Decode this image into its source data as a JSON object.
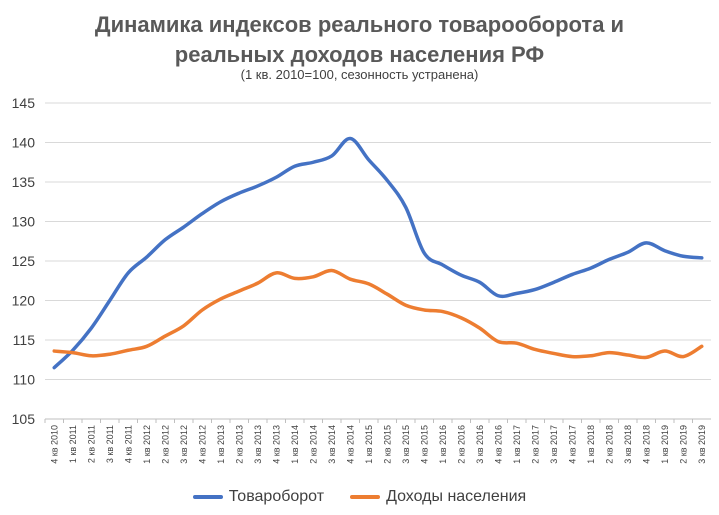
{
  "chart_data": {
    "type": "line",
    "title_line1": "Динамика индексов реального товарооборота и",
    "title_line2": "реальных доходов населения РФ",
    "subtitle": "(1 кв. 2010=100, сезонность устранена)",
    "ylim": [
      105,
      145
    ],
    "yticks": [
      105,
      110,
      115,
      120,
      125,
      130,
      135,
      140,
      145
    ],
    "grid": "horizontal",
    "legend_position": "bottom",
    "categories": [
      "4 кв 2010",
      "1 кв 2011",
      "2 кв 2011",
      "3 кв 2011",
      "4 кв 2011",
      "1 кв 2012",
      "2 кв 2012",
      "3 кв 2012",
      "4 кв 2012",
      "1 кв 2013",
      "2 кв 2013",
      "3 кв 2013",
      "4 кв 2013",
      "1 кв 2014",
      "2 кв 2014",
      "3 кв 2014",
      "4 кв 2014",
      "1 кв 2015",
      "2 кв 2015",
      "3 кв 2015",
      "4 кв 2015",
      "1 кв 2016",
      "2 кв 2016",
      "3 кв 2016",
      "4 кв 2016",
      "1 кв 2017",
      "2 кв 2017",
      "3 кв 2017",
      "4 кв 2017",
      "1 кв 2018",
      "2 кв 2018",
      "3 кв 2018",
      "4 кв 2018",
      "1 кв 2019",
      "2 кв 2019",
      "3 кв 2019"
    ],
    "series": [
      {
        "name": "Товароборот",
        "color": "#4472C4",
        "values": [
          111.5,
          113.7,
          116.5,
          120,
          123.5,
          125.5,
          127.7,
          129.3,
          131,
          132.5,
          133.6,
          134.5,
          135.6,
          137,
          137.5,
          138.3,
          140.5,
          137.8,
          135.2,
          131.8,
          126,
          124.5,
          123.2,
          122.3,
          120.6,
          120.9,
          121.4,
          122.3,
          123.3,
          124.1,
          125.2,
          126.1,
          127.3,
          126.3,
          125.6,
          125.4
        ]
      },
      {
        "name": "Доходы населения",
        "color": "#ED7D31",
        "values": [
          113.6,
          113.4,
          113,
          113.2,
          113.7,
          114.2,
          115.5,
          116.8,
          118.8,
          120.2,
          121.2,
          122.2,
          123.5,
          122.8,
          123,
          123.8,
          122.7,
          122.1,
          120.8,
          119.4,
          118.8,
          118.6,
          117.8,
          116.5,
          114.8,
          114.6,
          113.8,
          113.3,
          112.9,
          113,
          113.4,
          113.1,
          112.8,
          113.6,
          112.9,
          114.2
        ]
      }
    ]
  }
}
